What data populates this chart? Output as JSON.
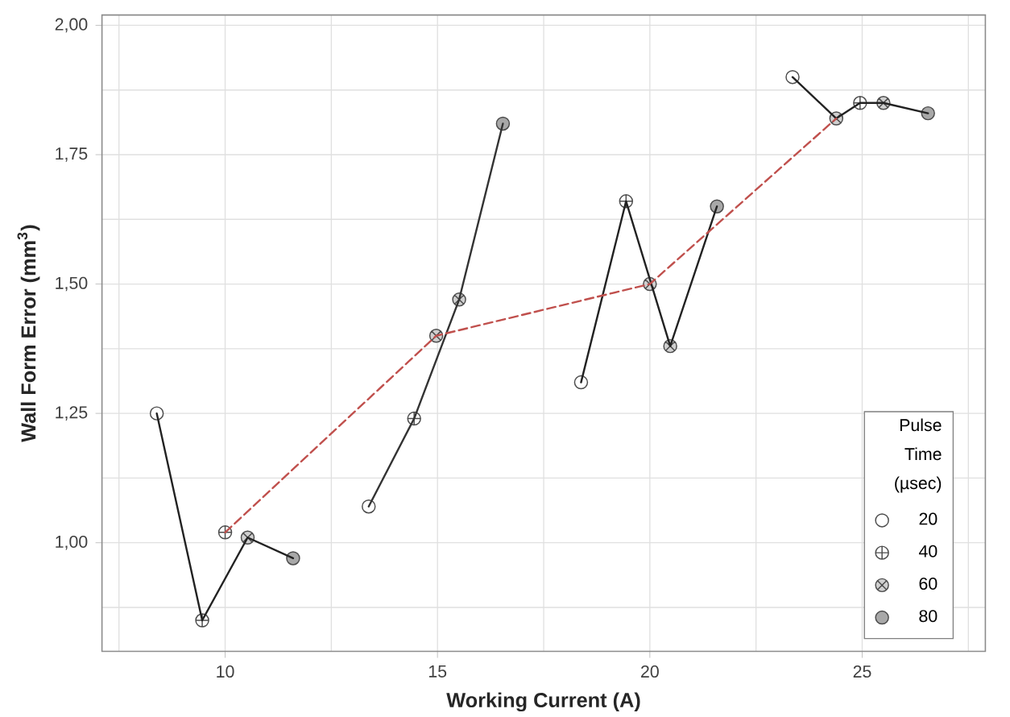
{
  "chart_data": {
    "type": "scatter",
    "xlabel": "Working Current (A)",
    "ylabel": "Wall Form Error (mm$^{3}$)",
    "legend_title": "Pulse Time (µsec)",
    "xlim": [
      7.1,
      27.9
    ],
    "ylim": [
      0.79,
      2.02
    ],
    "xticks": [
      10,
      15,
      20,
      25
    ],
    "yticks": [
      {
        "value": 1.0,
        "label": "1,00"
      },
      {
        "value": 1.25,
        "label": "1,25"
      },
      {
        "value": 1.5,
        "label": "1,50"
      },
      {
        "value": 1.75,
        "label": "1,75"
      },
      {
        "value": 2.0,
        "label": "2,00"
      }
    ],
    "grid": true,
    "legend": "bottom right",
    "series": [
      {
        "name": "20",
        "color": "#ffffff",
        "marker": "circle",
        "x": [
          8.39,
          13.38,
          18.38,
          23.36
        ],
        "values": [
          1.25,
          1.07,
          1.31,
          1.9
        ]
      },
      {
        "name": "40",
        "color": "#ffffff",
        "marker": "cross",
        "x": [
          9.46,
          10,
          14.45,
          19.44,
          24.95
        ],
        "values": [
          0.85,
          1.02,
          1.24,
          1.66,
          1.85
        ]
      },
      {
        "name": "60",
        "color": "#d0d0d0",
        "marker": "cross",
        "x": [
          10.53,
          14.97,
          15.51,
          20,
          20.48,
          24.39,
          25.5
        ],
        "values": [
          1.01,
          1.4,
          1.47,
          1.5,
          1.38,
          1.82,
          1.85
        ]
      },
      {
        "name": "80",
        "color": "#a8a8a8",
        "marker": "circle",
        "x": [
          11.6,
          16.54,
          21.58,
          26.55
        ],
        "values": [
          0.97,
          1.81,
          1.65,
          1.83
        ]
      },
      {
        "type": "line",
        "color": "#222222",
        "marker": "none",
        "line_style": "solid",
        "x": [
          8.39,
          9.46,
          10.53,
          11.6
        ],
        "values": [
          1.25,
          0.85,
          1.01,
          0.97
        ]
      },
      {
        "type": "line",
        "color": "#333333",
        "marker": "none",
        "line_style": "solid",
        "x": [
          13.38,
          14.45,
          15.51,
          16.54
        ],
        "values": [
          1.07,
          1.24,
          1.47,
          1.81
        ]
      },
      {
        "type": "line",
        "color": "#222222",
        "marker": "none",
        "line_style": "solid",
        "x": [
          18.38,
          19.44,
          20.48,
          21.58
        ],
        "values": [
          1.31,
          1.66,
          1.38,
          1.65
        ]
      },
      {
        "type": "line",
        "color": "#222222",
        "marker": "none",
        "line_style": "solid",
        "x": [
          23.36,
          24.39,
          24.95,
          25.5,
          26.55
        ],
        "values": [
          1.9,
          1.82,
          1.85,
          1.85,
          1.83
        ]
      },
      {
        "type": "line",
        "color": "#c0504d",
        "marker": "none",
        "line_style": "dashed",
        "x": [
          10,
          14.97,
          20,
          24.39
        ],
        "values": [
          1.02,
          1.4,
          1.5,
          1.82
        ]
      }
    ]
  }
}
